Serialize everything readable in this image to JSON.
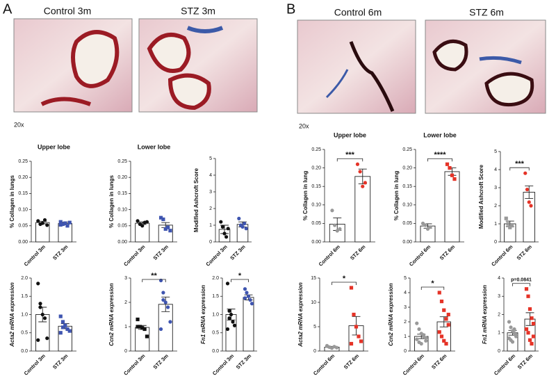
{
  "panel_labels": [
    "A",
    "B"
  ],
  "image_titles": [
    "Control 3m",
    "STZ 3m",
    "Control 6m",
    "STZ 6m"
  ],
  "magnification": [
    "20x",
    "20x"
  ],
  "chart_data": [
    {
      "type": "bar",
      "title": "Upper lobe",
      "ylabel": "% Collagen in lungs",
      "categories": [
        "Control 3m",
        "STZ 3m"
      ],
      "values": [
        0.06,
        0.057
      ],
      "errors": [
        0.004,
        0.004
      ],
      "points": [
        [
          0.065,
          0.055,
          0.058,
          0.068,
          0.052
        ],
        [
          0.062,
          0.055,
          0.058,
          0.05,
          0.06,
          0.053
        ]
      ],
      "colors": [
        "#111111",
        "#3f55b0"
      ],
      "markers": [
        "circle",
        "square"
      ],
      "ylim": [
        0,
        0.25
      ],
      "yticks": [
        {
          "value": 0,
          "label": "0.00"
        },
        0.05,
        {
          "value": 0.1,
          "label": "0.10"
        },
        0.15,
        {
          "value": 0.2,
          "label": "0.20"
        },
        0.25
      ]
    },
    {
      "type": "bar",
      "title": "Lower lobe",
      "ylabel": "% Collagen in lungs",
      "categories": [
        "Control 3m",
        "STZ 3m"
      ],
      "values": [
        0.058,
        0.052
      ],
      "errors": [
        0.004,
        0.008
      ],
      "points": [
        [
          0.065,
          0.055,
          0.05,
          0.06,
          0.062
        ],
        [
          0.075,
          0.07,
          0.04,
          0.045,
          0.035
        ]
      ],
      "colors": [
        "#111111",
        "#3f55b0"
      ],
      "markers": [
        "circle",
        "square"
      ],
      "ylim": [
        0,
        0.25
      ],
      "yticks": [
        {
          "value": 0,
          "label": "0.00"
        },
        0.05,
        {
          "value": 0.1,
          "label": "0.10"
        },
        0.15,
        {
          "value": 0.2,
          "label": "0.20"
        },
        0.25
      ]
    },
    {
      "type": "bar",
      "ylabel": "Modified Ashcroft Score",
      "categories": [
        "Control 3m",
        "STZ 3m"
      ],
      "values": [
        0.75,
        1.05
      ],
      "errors": [
        0.25,
        0.15
      ],
      "points": [
        [
          1.2,
          0.9,
          0.5,
          0.3,
          0.8
        ],
        [
          1.4,
          1.0,
          0.9,
          1.1,
          0.8
        ]
      ],
      "colors": [
        "#111111",
        "#3f55b0"
      ],
      "markers": [
        "circle",
        "circle"
      ],
      "ylim": [
        0,
        5
      ],
      "yticks": [
        0,
        1,
        2,
        3,
        4,
        5
      ]
    },
    {
      "type": "bar",
      "title": "Upper lobe",
      "ylabel": "% Collagen in lung",
      "categories": [
        "Control 6m",
        "STZ 6m"
      ],
      "values": [
        0.048,
        0.177
      ],
      "errors": [
        0.017,
        0.02
      ],
      "points": [
        [
          0.085,
          0.045,
          0.03,
          0.035
        ],
        [
          0.21,
          0.19,
          0.15,
          0.16
        ]
      ],
      "colors": [
        "#999999",
        "#e53327"
      ],
      "markers": [
        "circle",
        "circle"
      ],
      "annotation": "***",
      "ylim": [
        0,
        0.25
      ],
      "yticks": [
        {
          "value": 0,
          "label": "0.00"
        },
        0.05,
        {
          "value": 0.1,
          "label": "0.10"
        },
        0.15,
        {
          "value": 0.2,
          "label": "0.20"
        },
        0.25
      ]
    },
    {
      "type": "bar",
      "title": "Lower lobe",
      "ylabel": "% Collagen in lung",
      "categories": [
        "Control 6m",
        "STZ 6m"
      ],
      "values": [
        0.043,
        0.19
      ],
      "errors": [
        0.006,
        0.01
      ],
      "points": [
        [
          0.05,
          0.045,
          0.035,
          0.04
        ],
        [
          0.21,
          0.2,
          0.18,
          0.17
        ]
      ],
      "colors": [
        "#999999",
        "#e53327"
      ],
      "markers": [
        "circle",
        "square"
      ],
      "annotation": "****",
      "ylim": [
        0,
        0.25
      ],
      "yticks": [
        {
          "value": 0,
          "label": "0.00"
        },
        0.05,
        {
          "value": 0.1,
          "label": "0.10"
        },
        0.15,
        {
          "value": 0.2,
          "label": "0.20"
        },
        0.25
      ]
    },
    {
      "type": "bar",
      "ylabel": "Modified Ashcroft Score",
      "categories": [
        "Control 6m",
        "STZ 6m"
      ],
      "values": [
        1.0,
        2.75
      ],
      "errors": [
        0.15,
        0.35
      ],
      "points": [
        [
          1.3,
          1.0,
          0.8,
          0.9
        ],
        [
          3.8,
          2.9,
          2.2,
          2.0
        ]
      ],
      "colors": [
        "#999999",
        "#e53327"
      ],
      "markers": [
        "square",
        "circle"
      ],
      "annotation": "***",
      "ylim": [
        0,
        5
      ],
      "yticks": [
        0,
        1,
        2,
        3,
        4,
        5
      ]
    },
    {
      "type": "bar",
      "ylabel": "Acta2 mRNA expression",
      "categories": [
        "Control 3m",
        "STZ 3m"
      ],
      "values": [
        1.0,
        0.68
      ],
      "errors": [
        0.2,
        0.07
      ],
      "points": [
        [
          1.85,
          1.2,
          1.0,
          0.9,
          0.35,
          0.3,
          1.3
        ],
        [
          0.95,
          0.8,
          0.7,
          0.6,
          0.55,
          0.5,
          0.65
        ]
      ],
      "colors": [
        "#111111",
        "#3f55b0"
      ],
      "markers": [
        "circle",
        "square"
      ],
      "ylim": [
        0,
        2
      ],
      "yticks": [
        {
          "value": 0,
          "label": "0.0"
        },
        0.5,
        {
          "value": 1,
          "label": "1.0"
        },
        1.5,
        {
          "value": 2,
          "label": "2.0"
        }
      ]
    },
    {
      "type": "bar",
      "ylabel": "Ccn2 mRNA expression",
      "categories": [
        "Control 3m",
        "STZ 3m"
      ],
      "values": [
        0.97,
        1.92
      ],
      "errors": [
        0.08,
        0.3
      ],
      "points": [
        [
          1.3,
          1.0,
          0.95,
          0.9,
          0.6,
          1.0
        ],
        [
          2.9,
          2.4,
          2.0,
          1.8,
          1.2,
          0.9,
          2.1
        ]
      ],
      "colors": [
        "#111111",
        "#3f55b0"
      ],
      "markers": [
        "square",
        "circle"
      ],
      "annotation": "**",
      "ylim": [
        0,
        3
      ],
      "yticks": [
        0,
        1,
        2,
        3
      ]
    },
    {
      "type": "bar",
      "ylabel": "Fn1 mRNA expression",
      "categories": [
        "Control 3m",
        "STZ 3m"
      ],
      "values": [
        1.0,
        1.47
      ],
      "errors": [
        0.15,
        0.07
      ],
      "points": [
        [
          1.85,
          1.1,
          1.0,
          0.8,
          0.7,
          0.6,
          0.9
        ],
        [
          1.7,
          1.6,
          1.5,
          1.4,
          1.3,
          1.45
        ]
      ],
      "colors": [
        "#111111",
        "#3f55b0"
      ],
      "markers": [
        "circle",
        "circle"
      ],
      "annotation": "*",
      "ylim": [
        0,
        2
      ],
      "yticks": [
        {
          "value": 0,
          "label": "0.0"
        },
        0.5,
        {
          "value": 1,
          "label": "1.0"
        },
        1.5,
        {
          "value": 2,
          "label": "2.0"
        }
      ]
    },
    {
      "type": "bar",
      "ylabel": "Acta2 mRNA expression",
      "categories": [
        "Control 6m",
        "STZ 6m"
      ],
      "values": [
        0.8,
        5.2
      ],
      "errors": [
        0.15,
        1.9
      ],
      "points": [
        [
          1.0,
          0.8,
          0.6,
          0.9,
          0.7,
          1.1
        ],
        [
          13.0,
          7.5,
          5.0,
          3.0,
          2.0,
          1.5
        ]
      ],
      "colors": [
        "#999999",
        "#e53327"
      ],
      "markers": [
        "circle",
        "square"
      ],
      "annotation": "*",
      "ylim": [
        0,
        15
      ],
      "yticks": [
        0,
        5,
        10,
        15
      ]
    },
    {
      "type": "bar",
      "ylabel": "Ccn2 mRNA expression",
      "categories": [
        "Control 6m",
        "STZ 6m"
      ],
      "values": [
        1.0,
        2.0
      ],
      "errors": [
        0.15,
        0.35
      ],
      "points": [
        [
          1.9,
          1.5,
          1.2,
          1.0,
          0.9,
          0.8,
          0.6,
          0.5,
          1.1,
          0.7
        ],
        [
          4.0,
          3.4,
          2.8,
          2.2,
          1.8,
          1.3,
          1.0,
          0.7,
          0.5,
          2.5
        ]
      ],
      "colors": [
        "#999999",
        "#e53327"
      ],
      "markers": [
        "circle",
        "square"
      ],
      "annotation": "*",
      "ylim": [
        0,
        5
      ],
      "yticks": [
        0,
        1,
        2,
        3,
        4,
        5
      ]
    },
    {
      "type": "bar",
      "ylabel": "Fn1 mRNA expression",
      "categories": [
        "Control 6m",
        "STZ 6m"
      ],
      "values": [
        1.0,
        1.75
      ],
      "errors": [
        0.13,
        0.35
      ],
      "points": [
        [
          1.6,
          1.3,
          1.1,
          1.0,
          0.9,
          0.7,
          0.6,
          0.5,
          1.2,
          0.8
        ],
        [
          3.4,
          3.0,
          2.3,
          1.8,
          1.5,
          1.2,
          1.0,
          0.6,
          0.4,
          0.8
        ]
      ],
      "colors": [
        "#999999",
        "#e53327"
      ],
      "markers": [
        "circle",
        "square"
      ],
      "annotation": "p=0.0841",
      "ylim": [
        0,
        4
      ],
      "yticks": [
        0,
        1,
        2,
        3,
        4
      ]
    }
  ]
}
